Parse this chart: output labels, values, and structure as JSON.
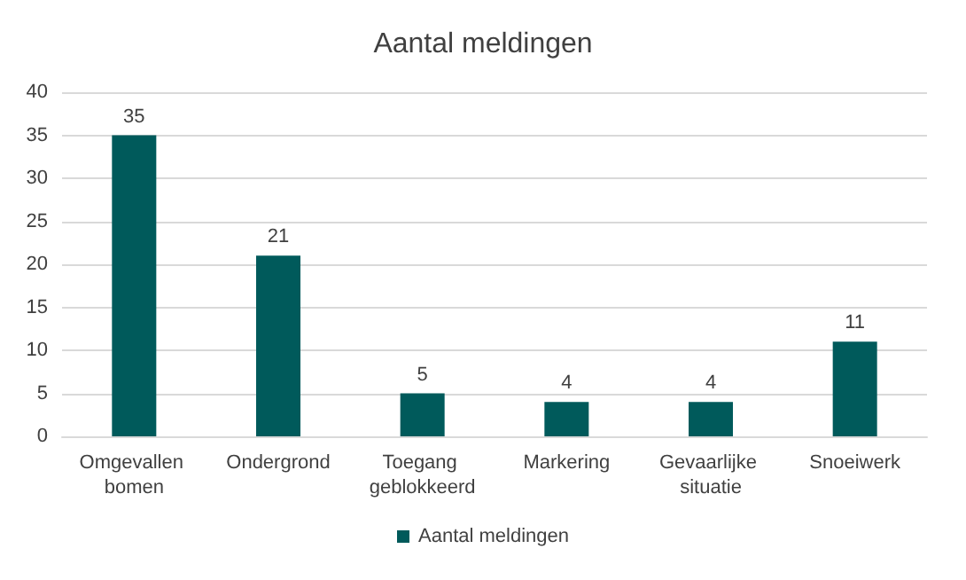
{
  "chart_data": {
    "type": "bar",
    "title": "Aantal meldingen",
    "categories": [
      "Omgevallen bomen",
      "Ondergrond",
      "Toegang geblokkeerd",
      "Markering",
      "Gevaarlijke situatie",
      "Snoeiwerk"
    ],
    "series": [
      {
        "name": "Aantal meldingen",
        "color": "#005a5b",
        "values": [
          35,
          21,
          5,
          4,
          4,
          11
        ]
      }
    ],
    "ylim": [
      0,
      40
    ],
    "yticks": [
      0,
      5,
      10,
      15,
      20,
      25,
      30,
      35,
      40
    ],
    "grid": "y",
    "legend": "bottom",
    "data_labels": true
  }
}
